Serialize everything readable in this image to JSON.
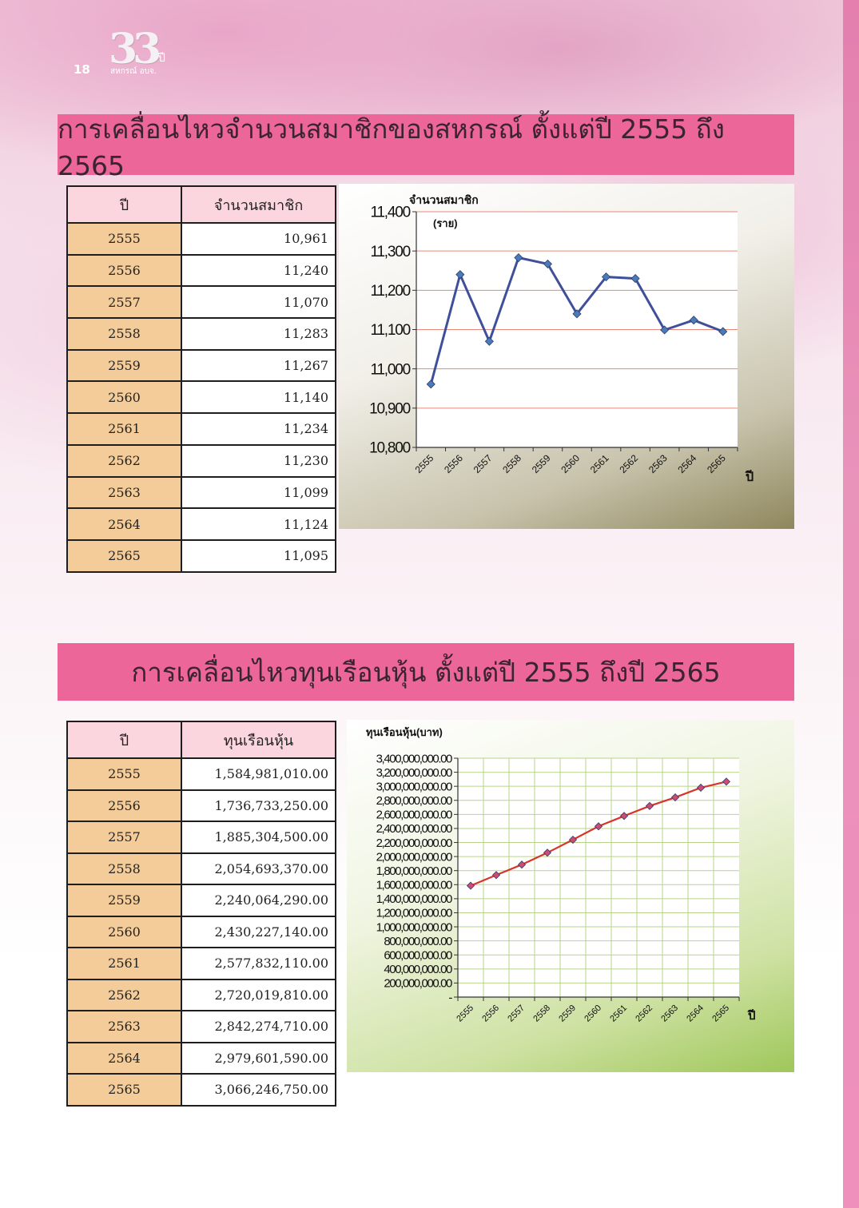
{
  "page": {
    "number": "18"
  },
  "logo": {
    "numeral": "33",
    "suffix": "ปี",
    "org": "สหกรณ์ อบจ."
  },
  "section1": {
    "title": "การเคลื่อนไหวจำนวนสมาชิกของสหกรณ์ ตั้งแต่ปี 2555 ถึง 2565",
    "table": {
      "headers": [
        "ปี",
        "จำนวนสมาชิก"
      ],
      "rows": [
        [
          "2555",
          "10,961"
        ],
        [
          "2556",
          "11,240"
        ],
        [
          "2557",
          "11,070"
        ],
        [
          "2558",
          "11,283"
        ],
        [
          "2559",
          "11,267"
        ],
        [
          "2560",
          "11,140"
        ],
        [
          "2561",
          "11,234"
        ],
        [
          "2562",
          "11,230"
        ],
        [
          "2563",
          "11,099"
        ],
        [
          "2564",
          "11,124"
        ],
        [
          "2565",
          "11,095"
        ]
      ]
    }
  },
  "section2": {
    "title": "การเคลื่อนไหวทุนเรือนหุ้น ตั้งแต่ปี 2555 ถึงปี 2565",
    "table": {
      "headers": [
        "ปี",
        "ทุนเรือนหุ้น"
      ],
      "rows": [
        [
          "2555",
          "1,584,981,010.00"
        ],
        [
          "2556",
          "1,736,733,250.00"
        ],
        [
          "2557",
          "1,885,304,500.00"
        ],
        [
          "2558",
          "2,054,693,370.00"
        ],
        [
          "2559",
          "2,240,064,290.00"
        ],
        [
          "2560",
          "2,430,227,140.00"
        ],
        [
          "2561",
          "2,577,832,110.00"
        ],
        [
          "2562",
          "2,720,019,810.00"
        ],
        [
          "2563",
          "2,842,274,710.00"
        ],
        [
          "2564",
          "2,979,601,590.00"
        ],
        [
          "2565",
          "3,066,246,750.00"
        ]
      ]
    }
  },
  "chart_data": [
    {
      "type": "line",
      "title": "",
      "ylabel": "จำนวนสมาชิก",
      "ylabel_unit": "(ราย)",
      "xlabel": "ปี",
      "categories": [
        "2555",
        "2556",
        "2557",
        "2558",
        "2559",
        "2560",
        "2561",
        "2562",
        "2563",
        "2564",
        "2565"
      ],
      "series": [
        {
          "values": [
            10961,
            11240,
            11070,
            11283,
            11267,
            11140,
            11234,
            11230,
            11099,
            11124,
            11095
          ],
          "color": "#3f4f9a",
          "marker_color": "#4a7ab8"
        }
      ],
      "ylim": [
        10800,
        11400
      ],
      "yticks": [
        10800,
        10900,
        11000,
        11100,
        11200,
        11300,
        11400
      ],
      "ytick_labels": [
        "10,800",
        "10,900",
        "11,000",
        "11,100",
        "11,200",
        "11,300",
        "11,400"
      ],
      "grid": true,
      "grid_color": "#e58a7a"
    },
    {
      "type": "line",
      "title": "",
      "ylabel": "ทุนเรือนหุ้น(บาท)",
      "xlabel": "ปี",
      "categories": [
        "2555",
        "2556",
        "2557",
        "2558",
        "2559",
        "2560",
        "2561",
        "2562",
        "2563",
        "2564",
        "2565"
      ],
      "series": [
        {
          "values": [
            1584981010,
            1736733250,
            1885304500,
            2054693370,
            2240064290,
            2430227140,
            2577832110,
            2720019810,
            2842274710,
            2979601590,
            3066246750
          ],
          "color": "#d8342c",
          "marker_color": "#d04a72"
        }
      ],
      "ylim": [
        0,
        3400000000
      ],
      "yticks": [
        0,
        200000000,
        400000000,
        600000000,
        800000000,
        1000000000,
        1200000000,
        1400000000,
        1600000000,
        1800000000,
        2000000000,
        2200000000,
        2400000000,
        2600000000,
        2800000000,
        3000000000,
        3200000000,
        3400000000
      ],
      "ytick_labels": [
        "-",
        "200,000,000.00",
        "400,000,000.00",
        "600,000,000.00",
        "800,000,000.00",
        "1,000,000,000.00",
        "1,200,000,000.00",
        "1,400,000,000.00",
        "1,600,000,000.00",
        "1,800,000,000.00",
        "2,000,000,000.00",
        "2,200,000,000.00",
        "2,400,000,000.00",
        "2,600,000,000.00",
        "2,800,000,000.00",
        "3,000,000,000.00",
        "3,200,000,000.00",
        "3,400,000,000.00"
      ],
      "grid": true,
      "grid_color": "#b9d48a"
    }
  ]
}
